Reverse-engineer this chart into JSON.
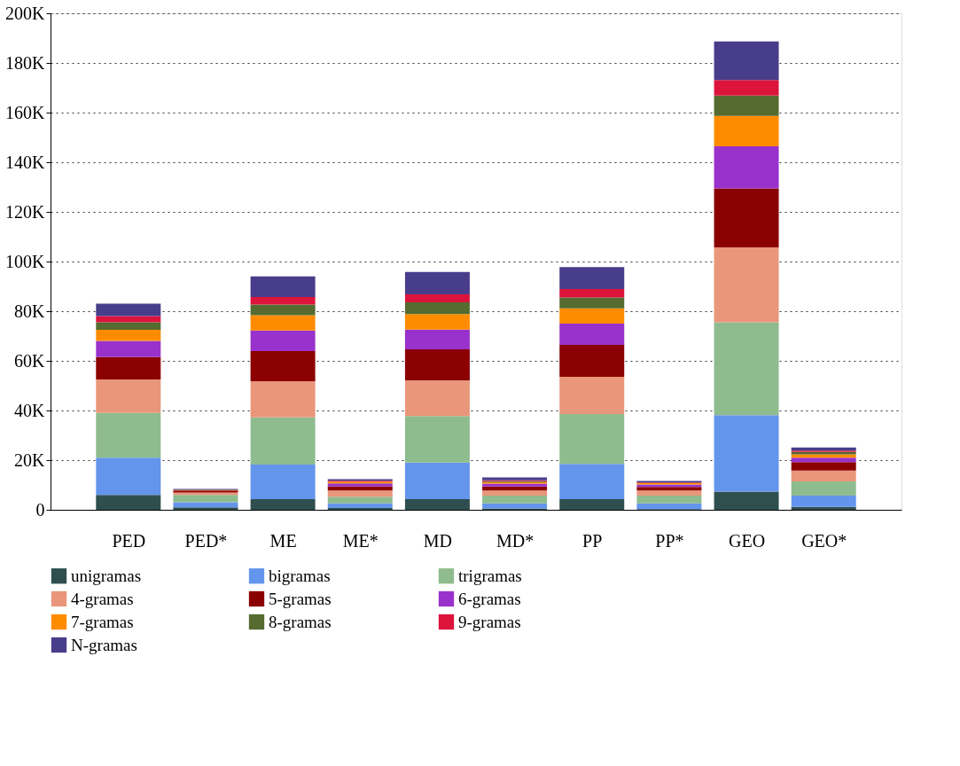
{
  "chart_data": {
    "type": "bar",
    "stacked": true,
    "categories": [
      "PED",
      "PED*",
      "ME",
      "ME*",
      "MD",
      "MD*",
      "PP",
      "PP*",
      "GEO",
      "GEO*"
    ],
    "ylim": [
      0,
      200000
    ],
    "yticks": [
      0,
      {
        "value": 20000,
        "label": "20K"
      },
      {
        "value": 40000,
        "label": "40K"
      },
      {
        "value": 60000,
        "label": "60K"
      },
      {
        "value": 80000,
        "label": "80K"
      },
      {
        "value": 100000,
        "label": "100K"
      },
      {
        "value": 120000,
        "label": "120K"
      },
      {
        "value": 140000,
        "label": "140K"
      },
      {
        "value": 160000,
        "label": "160K"
      },
      {
        "value": 180000,
        "label": "180K"
      },
      {
        "value": 200000,
        "label": "200K"
      }
    ],
    "grid": "y",
    "legend": "bottom",
    "series": [
      {
        "name": "unigramas",
        "color": "#2f4f4f",
        "values": [
          6000,
          1000,
          4300,
          700,
          4300,
          500,
          4300,
          300,
          7300,
          1200
        ]
      },
      {
        "name": "bigramas",
        "color": "#6495ed",
        "values": [
          15000,
          2000,
          13900,
          1900,
          14700,
          2100,
          14200,
          2300,
          30800,
          4500
        ]
      },
      {
        "name": "trigramas",
        "color": "#8fbc8f",
        "values": [
          18000,
          3000,
          19000,
          2700,
          18800,
          3100,
          20100,
          3100,
          37400,
          5700
        ]
      },
      {
        "name": "4-gramas",
        "color": "#e9967a",
        "values": [
          13500,
          1000,
          14600,
          2500,
          14300,
          2100,
          15000,
          2100,
          30200,
          4400
        ]
      },
      {
        "name": "5-gramas",
        "color": "#8b0000",
        "values": [
          9000,
          800,
          12100,
          1700,
          12500,
          1600,
          12800,
          1400,
          23800,
          3400
        ]
      },
      {
        "name": "6-gramas",
        "color": "#9932cc",
        "values": [
          6500,
          null,
          8300,
          1100,
          8000,
          1100,
          8600,
          1000,
          16900,
          1800
        ]
      },
      {
        "name": "7-gramas",
        "color": "#ff8c00",
        "values": [
          4500,
          100,
          6200,
          700,
          6200,
          700,
          6200,
          500,
          12300,
          1300
        ]
      },
      {
        "name": "8-gramas",
        "color": "#556b2f",
        "values": [
          3000,
          100,
          4300,
          null,
          4800,
          300,
          4300,
          200,
          8200,
          1000
        ]
      },
      {
        "name": "9-gramas",
        "color": "#dc143c",
        "values": [
          2500,
          100,
          3000,
          400,
          3200,
          400,
          3400,
          200,
          6200,
          500
        ]
      },
      {
        "name": "N-gramas",
        "color": "#483d8b",
        "values": [
          5000,
          300,
          8300,
          600,
          9000,
          1100,
          8900,
          500,
          15600,
          1300
        ]
      }
    ]
  }
}
